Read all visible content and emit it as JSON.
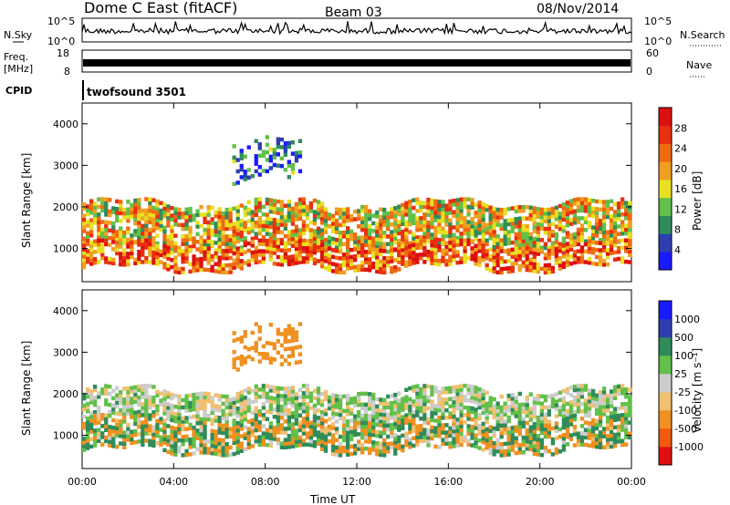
{
  "header": {
    "title": "Dome C East (fitACF)",
    "beam": "Beam 03",
    "date": "08/Nov/2014"
  },
  "top_panels": {
    "nsky_label": "N.Sky",
    "nsky_ticks": [
      "10^5",
      "10^0"
    ],
    "nsearch_label": "N.Search",
    "nsearch_ticks": [
      "10^5",
      "10^0"
    ],
    "freq_label": "Freq.",
    "freq_unit": "[MHz]",
    "freq_ticks": [
      "18",
      "8"
    ],
    "nave_label": "Nave",
    "nave_ticks": [
      "60",
      "0"
    ],
    "cpid_label": "CPID",
    "cpid_value": "twofsound 3501"
  },
  "colors": {
    "power": [
      "#1a1aff",
      "#2d3fb0",
      "#2f8c5a",
      "#62c04a",
      "#e8e020",
      "#f0a020",
      "#f06a10",
      "#e83010",
      "#dd1010"
    ],
    "velocity": [
      "#e01010",
      "#f05a10",
      "#f09020",
      "#f0c070",
      "#cccccc",
      "#62c04a",
      "#2f8c5a",
      "#2d3fb0",
      "#1a1aff"
    ]
  },
  "chart_data": [
    {
      "type": "heatmap",
      "name": "power",
      "xlabel": "",
      "ylabel": "Slant Range [km]",
      "yticks": [
        "1000",
        "2000",
        "3000",
        "4000"
      ],
      "ylim": [
        200,
        4500
      ],
      "colorbar_label": "Power [dB]",
      "colorbar_ticks": [
        "4",
        "8",
        "12",
        "16",
        "20",
        "24",
        "28"
      ],
      "xlim": [
        0,
        24
      ],
      "bands": [
        {
          "range": [
            1000,
            2100
          ],
          "value": 18
        },
        {
          "range": [
            500,
            1100
          ],
          "value": 24
        },
        {
          "range": [
            2600,
            3600
          ],
          "value": 6
        }
      ]
    },
    {
      "type": "heatmap",
      "name": "velocity",
      "xlabel": "Time UT",
      "ylabel": "Slant Range [km]",
      "yticks": [
        "1000",
        "2000",
        "3000",
        "4000"
      ],
      "ylim": [
        200,
        4500
      ],
      "colorbar_label": "Velocity [m s⁻¹]",
      "colorbar_ticks": [
        "1000",
        "500",
        "100",
        "25",
        "-25",
        "-100",
        "-500",
        "-1000"
      ],
      "xticks": [
        "00:00",
        "04:00",
        "08:00",
        "12:00",
        "16:00",
        "20:00",
        "00:00"
      ],
      "xlim": [
        0,
        24
      ],
      "bands": [
        {
          "range": [
            1400,
            2100
          ],
          "value": 0
        },
        {
          "range": [
            600,
            1400
          ],
          "value": -150
        },
        {
          "range": [
            2600,
            3600
          ],
          "value": -300
        }
      ]
    }
  ]
}
